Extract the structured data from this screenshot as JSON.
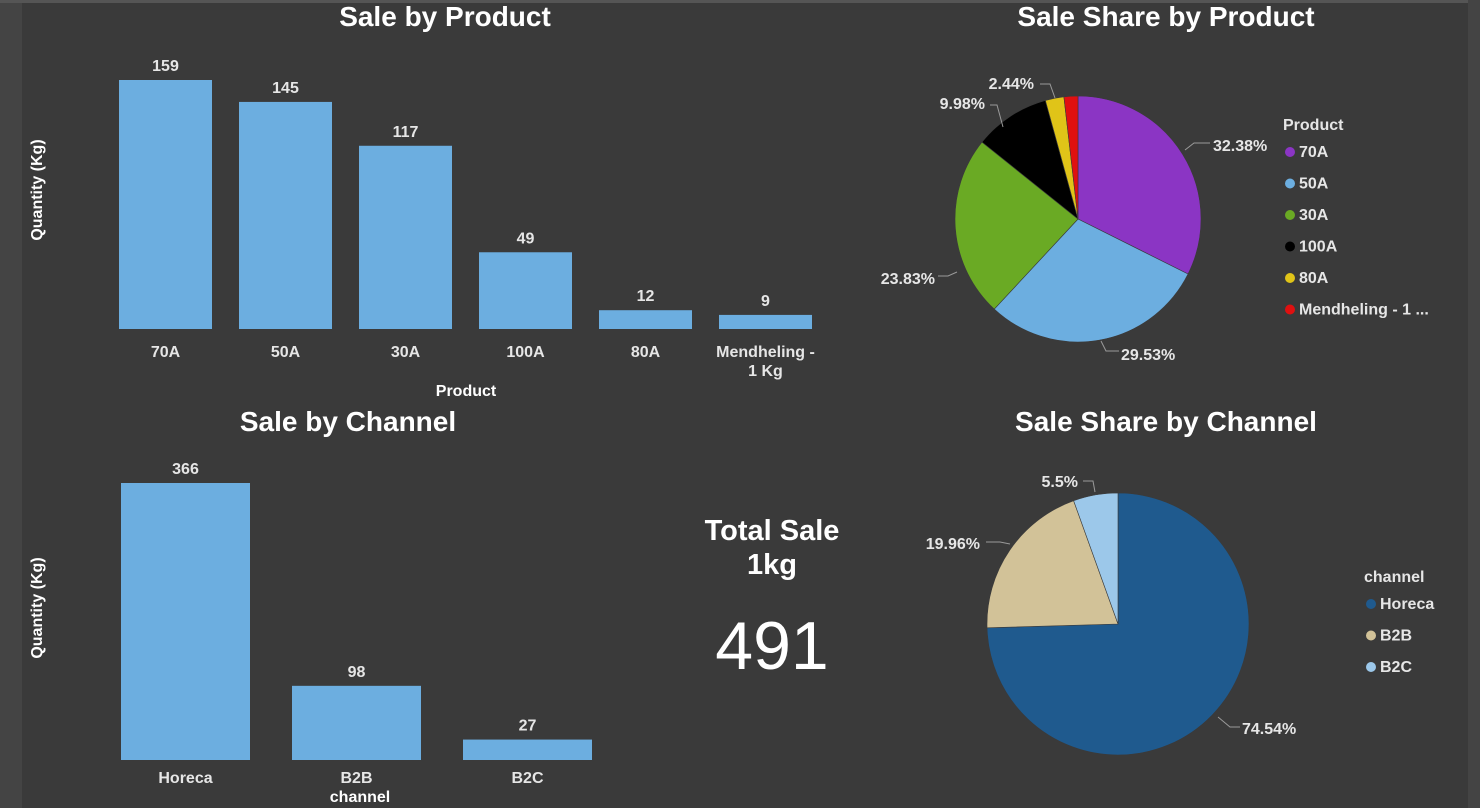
{
  "chart_data": [
    {
      "type": "bar",
      "title": "Sale by Product",
      "xlabel": "Product",
      "ylabel": "Quantity (Kg)",
      "categories": [
        "70A",
        "50A",
        "30A",
        "100A",
        "80A",
        "Mendheling - 1 Kg"
      ],
      "category_lines": [
        [
          "70A"
        ],
        [
          "50A"
        ],
        [
          "30A"
        ],
        [
          "100A"
        ],
        [
          "80A"
        ],
        [
          "Mendheling -",
          "1 Kg"
        ]
      ],
      "values": [
        159,
        145,
        117,
        49,
        12,
        9
      ],
      "color": "#6caee0",
      "ylim": [
        0,
        159
      ],
      "grid": false
    },
    {
      "type": "pie",
      "title": "Sale Share by Product",
      "legend_title": "Product",
      "legend_position": "right",
      "slices": [
        {
          "label": "70A",
          "legend": "70A",
          "value": 32.38,
          "text": "32.38%",
          "color": "#8b35c4"
        },
        {
          "label": "50A",
          "legend": "50A",
          "value": 29.53,
          "text": "29.53%",
          "color": "#6caee0"
        },
        {
          "label": "30A",
          "legend": "30A",
          "value": 23.83,
          "text": "23.83%",
          "color": "#6aaa24"
        },
        {
          "label": "100A",
          "legend": "100A",
          "value": 9.98,
          "text": "9.98%",
          "color": "#000000"
        },
        {
          "label": "80A",
          "legend": "80A",
          "value": 2.44,
          "text": "2.44%",
          "color": "#e0c418"
        },
        {
          "label": "Mendheling - 1 Kg",
          "legend": "Mendheling - 1 ...",
          "value": 1.83,
          "text": "",
          "color": "#e01010"
        }
      ]
    },
    {
      "type": "bar",
      "title": "Sale by Channel",
      "xlabel": "channel",
      "ylabel": "Quantity (Kg)",
      "categories": [
        "Horeca",
        "B2B",
        "B2C"
      ],
      "category_lines": [
        [
          "Horeca"
        ],
        [
          "B2B"
        ],
        [
          "B2C"
        ]
      ],
      "values": [
        366,
        98,
        27
      ],
      "color": "#6caee0",
      "ylim": [
        0,
        366
      ],
      "grid": false
    },
    {
      "type": "pie",
      "title": "Sale Share by Channel",
      "legend_title": "channel",
      "legend_position": "right",
      "slices": [
        {
          "label": "Horeca",
          "legend": "Horeca",
          "value": 74.54,
          "text": "74.54%",
          "color": "#1f5a8e"
        },
        {
          "label": "B2B",
          "legend": "B2B",
          "value": 19.96,
          "text": "19.96%",
          "color": "#d2c298"
        },
        {
          "label": "B2C",
          "legend": "B2C",
          "value": 5.5,
          "text": "5.5%",
          "color": "#9cc8ea"
        }
      ]
    }
  ],
  "card": {
    "title_line1": "Total Sale",
    "title_line2": "1kg",
    "value": "491"
  }
}
